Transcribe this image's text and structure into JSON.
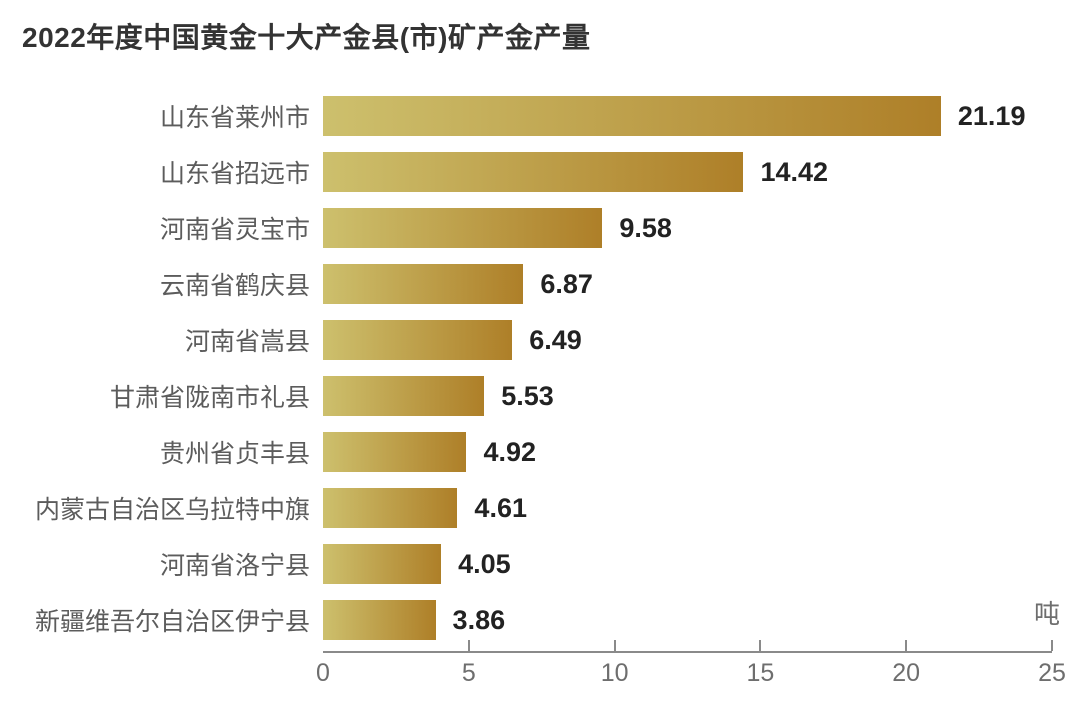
{
  "page": {
    "background": "#ffffff"
  },
  "chart_data": {
    "type": "bar",
    "orientation": "horizontal",
    "title": "2022年度中国黄金十大产金县(市)矿产金产量",
    "unit_label": "吨",
    "categories": [
      "山东省莱州市",
      "山东省招远市",
      "河南省灵宝市",
      "云南省鹤庆县",
      "河南省嵩县",
      "甘肃省陇南市礼县",
      "贵州省贞丰县",
      "内蒙古自治区乌拉特中旗",
      "河南省洛宁县",
      "新疆维吾尔自治区伊宁县"
    ],
    "values": [
      21.19,
      14.42,
      9.58,
      6.87,
      6.49,
      5.53,
      4.92,
      4.61,
      4.05,
      3.86
    ],
    "value_labels": [
      "21.19",
      "14.42",
      "9.58",
      "6.87",
      "6.49",
      "5.53",
      "4.92",
      "4.61",
      "4.05",
      "3.86"
    ],
    "xlim": [
      0,
      25
    ],
    "x_ticks": [
      0,
      5,
      10,
      15,
      20,
      25
    ],
    "grid": false,
    "legend": false,
    "data_labels": true,
    "colors": {
      "bar_gradient_start": "#cdc06d",
      "bar_gradient_end": "#ae7f28",
      "title": "#333333",
      "category_label": "#5c5c5c",
      "value_label": "#222222",
      "axis_line": "#8a8a8a",
      "tick_label": "#6e6e6e",
      "unit_label": "#6e6e6e",
      "background": "#ffffff"
    }
  }
}
